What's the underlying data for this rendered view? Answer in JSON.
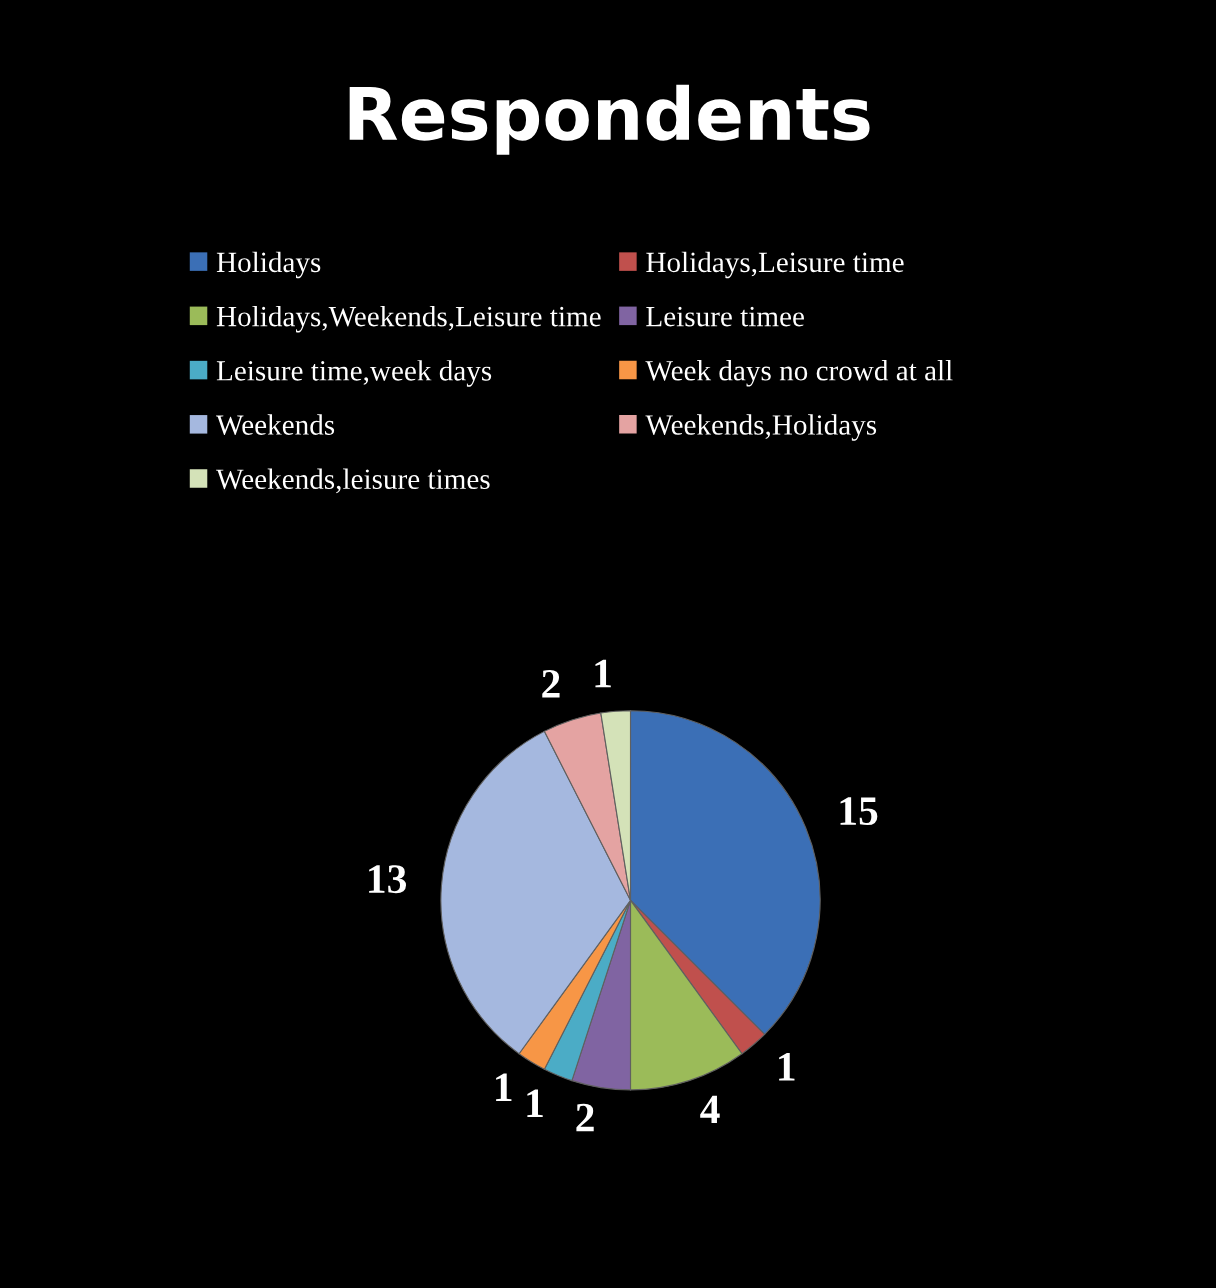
{
  "chart_data": {
    "type": "pie",
    "title": "Respondents",
    "categories": [
      "Holidays",
      "Holidays,Leisure time",
      "Holidays,Weekends,Leisure time",
      "Leisure timee",
      "Leisure time,week days",
      "Week days no crowd at all",
      "Weekends",
      "Weekends,Holidays",
      "Weekends,leisure times"
    ],
    "values": [
      15,
      1,
      4,
      2,
      1,
      1,
      13,
      2,
      1
    ],
    "colors": [
      "#3b6fb6",
      "#c0504d",
      "#9bbb59",
      "#8064a2",
      "#4bacc6",
      "#f79646",
      "#a5b8df",
      "#e4a3a2",
      "#d4e2b8"
    ],
    "data_labels": true,
    "legend": "top"
  }
}
